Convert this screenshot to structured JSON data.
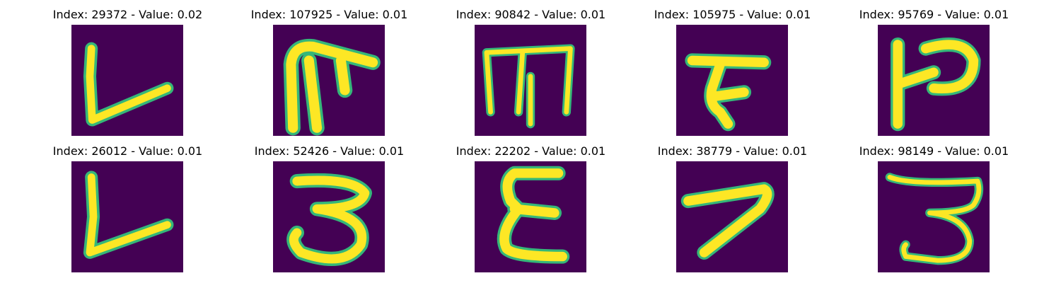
{
  "figure": {
    "background": "#ffffff",
    "image_bg": "#440154",
    "glyph_color": "#fde725",
    "glyph_edge": "#35b779",
    "panels": [
      {
        "title": "Index: 29372 - Value: 0.02"
      },
      {
        "title": "Index: 107925 - Value: 0.01"
      },
      {
        "title": "Index: 90842 - Value: 0.01"
      },
      {
        "title": "Index: 105975 - Value: 0.01"
      },
      {
        "title": "Index: 95769 - Value: 0.01"
      },
      {
        "title": "Index: 26012 - Value: 0.01"
      },
      {
        "title": "Index: 52426 - Value: 0.01"
      },
      {
        "title": "Index: 22202 - Value: 0.01"
      },
      {
        "title": "Index: 38779 - Value: 0.01"
      },
      {
        "title": "Index: 98149 - Value: 0.01"
      }
    ]
  }
}
